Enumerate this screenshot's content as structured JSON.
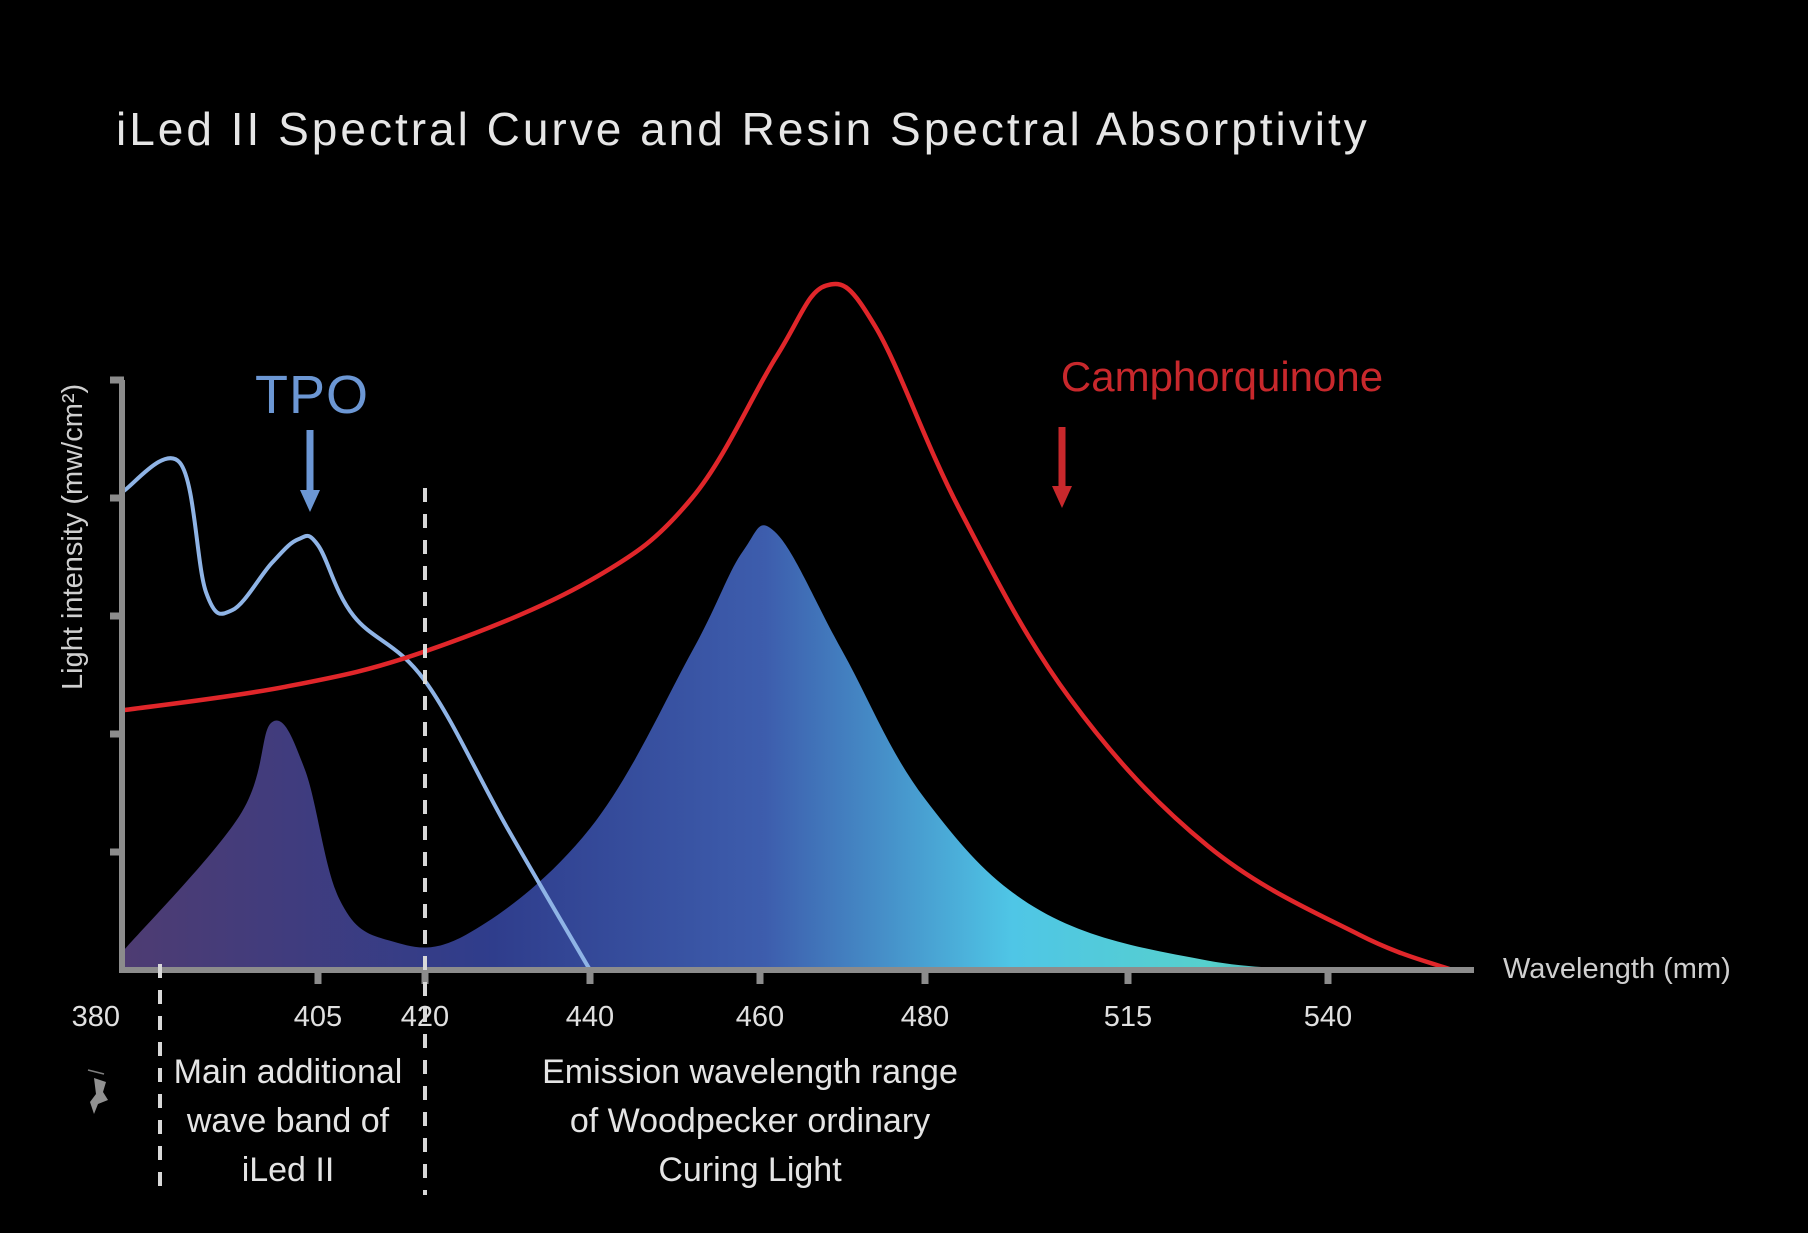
{
  "chart_data": {
    "type": "line",
    "title": "iLed  II  Spectral Curve and Resin Spectral Absorptivity",
    "xlabel": "Wavelength (mm)",
    "ylabel": "Light intensity (mw/cm²)",
    "x_ticks": [
      "380",
      "405",
      "420",
      "440",
      "460",
      "480",
      "515",
      "540"
    ],
    "y_ticks_count": 5,
    "y_values_labeled": false,
    "series": [
      {
        "name": "TPO",
        "kind": "line",
        "color": "#8fb4e6",
        "points": [
          [
            380,
            4.05
          ],
          [
            384,
            4.3
          ],
          [
            388,
            3.2
          ],
          [
            392,
            3.05
          ],
          [
            398,
            3.45
          ],
          [
            402,
            3.65
          ],
          [
            405,
            3.6
          ],
          [
            410,
            3.0
          ],
          [
            420,
            2.45
          ],
          [
            430,
            1.2
          ],
          [
            440,
            0.0
          ]
        ]
      },
      {
        "name": "Camphorquinone",
        "kind": "line",
        "color": "#e0262a",
        "points": [
          [
            380,
            2.2
          ],
          [
            400,
            2.4
          ],
          [
            420,
            2.7
          ],
          [
            440,
            3.3
          ],
          [
            452,
            4.0
          ],
          [
            462,
            5.2
          ],
          [
            468,
            5.8
          ],
          [
            474,
            5.45
          ],
          [
            486,
            3.9
          ],
          [
            505,
            2.3
          ],
          [
            525,
            1.05
          ],
          [
            545,
            0.3
          ],
          [
            560,
            0.0
          ]
        ]
      },
      {
        "name": "",
        "kind": "area",
        "color_start": "#4c3c78",
        "color_end": "#5ad0e6",
        "points": [
          [
            380,
            0.15
          ],
          [
            393,
            1.3
          ],
          [
            398,
            2.1
          ],
          [
            403,
            1.7
          ],
          [
            408,
            0.6
          ],
          [
            415,
            0.25
          ],
          [
            425,
            0.3
          ],
          [
            440,
            1.2
          ],
          [
            452,
            2.7
          ],
          [
            458,
            3.55
          ],
          [
            462,
            3.7
          ],
          [
            470,
            2.7
          ],
          [
            480,
            1.45
          ],
          [
            500,
            0.5
          ],
          [
            525,
            0.08
          ],
          [
            545,
            0.0
          ]
        ]
      }
    ],
    "annotations": [
      {
        "text": "TPO",
        "target": "TPO",
        "color": "#6c97d4"
      },
      {
        "text": "Camphorquinone",
        "target": "Camphorquinone",
        "color": "#c8282c"
      }
    ],
    "bands": [
      {
        "range": [
          381,
          420
        ],
        "lines": [
          "Main additional",
          "wave band of",
          "iLed  II"
        ]
      },
      {
        "range": [
          420,
          500
        ],
        "lines": [
          "Emission wavelength range",
          "of Woodpecker ordinary",
          "Curing Light"
        ]
      }
    ],
    "grid": false,
    "legend": "none",
    "background": "#000000",
    "axis_color": "#8c8c8c"
  }
}
